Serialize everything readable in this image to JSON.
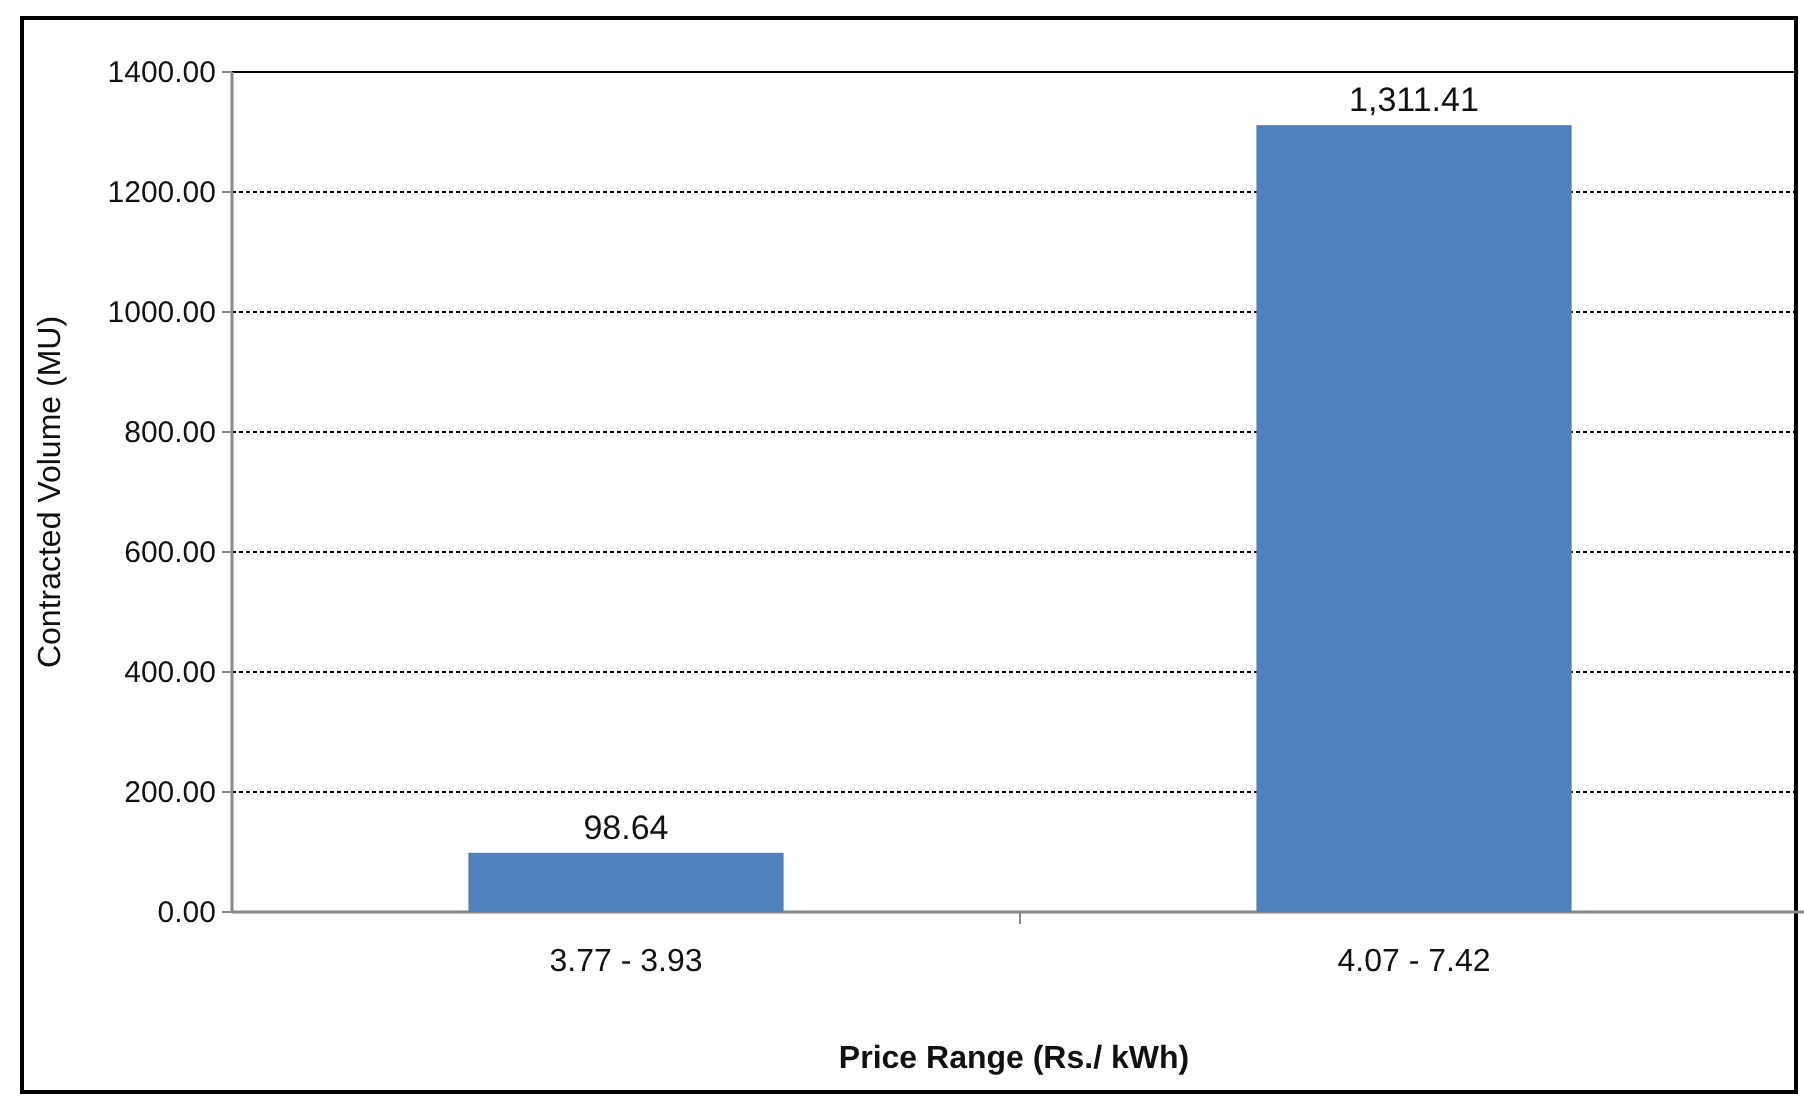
{
  "chart_data": {
    "type": "bar",
    "xlabel": "Price Range (Rs./ kWh)",
    "ylabel": "Contracted Volume (MU)",
    "categories": [
      "3.77 - 3.93",
      "4.07 - 7.42"
    ],
    "values": [
      98.64,
      1311.41
    ],
    "value_labels": [
      "98.64",
      "1,311.41"
    ],
    "color": "#4f81bd",
    "ylim": [
      0,
      1400
    ],
    "yticks": [
      {
        "value": 0,
        "label": "0.00"
      },
      {
        "value": 200,
        "label": "200.00"
      },
      {
        "value": 400,
        "label": "400.00"
      },
      {
        "value": 600,
        "label": "600.00"
      },
      {
        "value": 800,
        "label": "800.00"
      },
      {
        "value": 1000,
        "label": "1000.00"
      },
      {
        "value": 1200,
        "label": "1200.00"
      },
      {
        "value": 1400,
        "label": "1400.00"
      }
    ],
    "grid": "y"
  }
}
